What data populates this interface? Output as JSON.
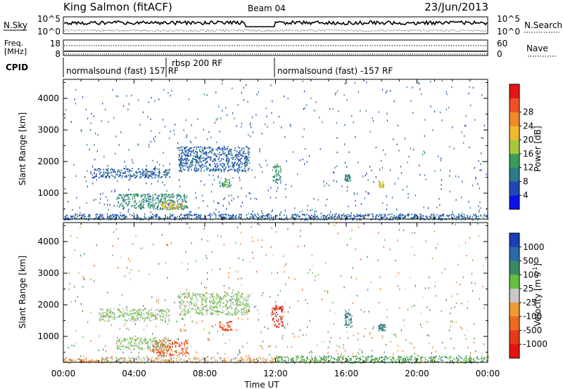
{
  "header": {
    "station": "King Salmon (fitACF)",
    "beam": "Beam 04",
    "date": "23/Jun/2013"
  },
  "status_panels": {
    "nsky_label": "N.Sky",
    "nsky_ticks": [
      "10^5",
      "10^0"
    ],
    "nsearch_label": "N.Search",
    "nsearch_ticks": [
      "10^5",
      "10^0"
    ],
    "freq_label_line1": "Freq.",
    "freq_label_line2": "[MHz]",
    "freq_ticks": [
      "18",
      "8"
    ],
    "nave_label": "Nave",
    "nave_ticks": [
      "60",
      "0"
    ],
    "cpid_label": "CPID",
    "programs": [
      {
        "label": "normalsound (fast) 157 RF",
        "start_hour": 0.0,
        "end_hour": 5.75
      },
      {
        "label": "rbsp 200 RF",
        "start_hour": 5.75,
        "end_hour": 12.0
      },
      {
        "label": "normalsound (fast) -157 RF",
        "start_hour": 12.0,
        "end_hour": 24.0
      }
    ]
  },
  "axes": {
    "ylabel": "Slant Range [km]",
    "xlabel": "Time UT",
    "x_tick_labels": [
      "00:00",
      "04:00",
      "08:00",
      "12:00",
      "16:00",
      "20:00",
      "00:00"
    ],
    "y_tick_labels": [
      "1000",
      "2000",
      "3000",
      "4000"
    ]
  },
  "colorbars": {
    "power": {
      "label": "Power [dB]",
      "tick_labels": [
        "4",
        "8",
        "12",
        "16",
        "20",
        "24",
        "28"
      ],
      "colors": [
        "#0a12e6",
        "#1f47b8",
        "#2c7a8c",
        "#3a9c5a",
        "#a6c93c",
        "#f0b830",
        "#f08a28",
        "#ee5020",
        "#e51515"
      ]
    },
    "velocity": {
      "label_text": "Velocity [m s",
      "label_exp": "-1",
      "label_close": "]",
      "tick_labels": [
        "1000",
        "500",
        "100",
        "25",
        "-25",
        "-100",
        "-500",
        "-1000"
      ],
      "colors": [
        "#1a3fb8",
        "#2a6aa8",
        "#3a8a66",
        "#66c040",
        "#c8c8c8",
        "#ee9a30",
        "#ee6a20",
        "#e53a15",
        "#e51212"
      ]
    }
  },
  "chart_data": [
    {
      "type": "heatmap",
      "name": "power",
      "x_range_hours": [
        0,
        24
      ],
      "y_range_km": [
        180,
        4600
      ],
      "scatter_regions_power_db": [
        {
          "t_start": 0.0,
          "t_end": 24.0,
          "r_min": 180,
          "r_max": 360,
          "value": 8
        },
        {
          "t_start": 3.0,
          "t_end": 7.0,
          "r_min": 500,
          "r_max": 1000,
          "value": 12
        },
        {
          "t_start": 5.5,
          "t_end": 6.8,
          "r_min": 500,
          "r_max": 750,
          "value": 22
        },
        {
          "t_start": 1.5,
          "t_end": 6.0,
          "r_min": 1500,
          "r_max": 1800,
          "value": 8
        },
        {
          "t_start": 6.5,
          "t_end": 10.5,
          "r_min": 1700,
          "r_max": 2500,
          "value": 8
        },
        {
          "t_start": 8.8,
          "t_end": 9.4,
          "r_min": 1200,
          "r_max": 1500,
          "value": 14
        },
        {
          "t_start": 11.8,
          "t_end": 12.3,
          "r_min": 1300,
          "r_max": 1900,
          "value": 12
        },
        {
          "t_start": 15.9,
          "t_end": 16.2,
          "r_min": 1400,
          "r_max": 1600,
          "value": 12
        },
        {
          "t_start": 17.8,
          "t_end": 18.1,
          "r_min": 1200,
          "r_max": 1400,
          "value": 20
        }
      ]
    },
    {
      "type": "heatmap",
      "name": "velocity",
      "x_range_hours": [
        0,
        24
      ],
      "y_range_km": [
        180,
        4600
      ],
      "scatter_regions_velocity_ms": [
        {
          "t_start": 0.0,
          "t_end": 2.0,
          "r_min": 180,
          "r_max": 300,
          "value": -100
        },
        {
          "t_start": 2.0,
          "t_end": 12.0,
          "r_min": 180,
          "r_max": 360,
          "value": -25
        },
        {
          "t_start": 12.0,
          "t_end": 24.0,
          "r_min": 180,
          "r_max": 400,
          "value": 100
        },
        {
          "t_start": 5.0,
          "t_end": 7.0,
          "r_min": 400,
          "r_max": 900,
          "value": -500
        },
        {
          "t_start": 3.0,
          "t_end": 6.0,
          "r_min": 600,
          "r_max": 1000,
          "value": 25
        },
        {
          "t_start": 2.0,
          "t_end": 6.0,
          "r_min": 1500,
          "r_max": 1900,
          "value": 25
        },
        {
          "t_start": 6.5,
          "t_end": 10.5,
          "r_min": 1700,
          "r_max": 2400,
          "value": 25
        },
        {
          "t_start": 8.8,
          "t_end": 9.5,
          "r_min": 1200,
          "r_max": 1500,
          "value": -500
        },
        {
          "t_start": 11.8,
          "t_end": 12.4,
          "r_min": 1300,
          "r_max": 2000,
          "value": -1000
        },
        {
          "t_start": 15.9,
          "t_end": 16.3,
          "r_min": 1300,
          "r_max": 1800,
          "value": 500
        },
        {
          "t_start": 17.8,
          "t_end": 18.2,
          "r_min": 1200,
          "r_max": 1400,
          "value": 500
        }
      ]
    }
  ]
}
